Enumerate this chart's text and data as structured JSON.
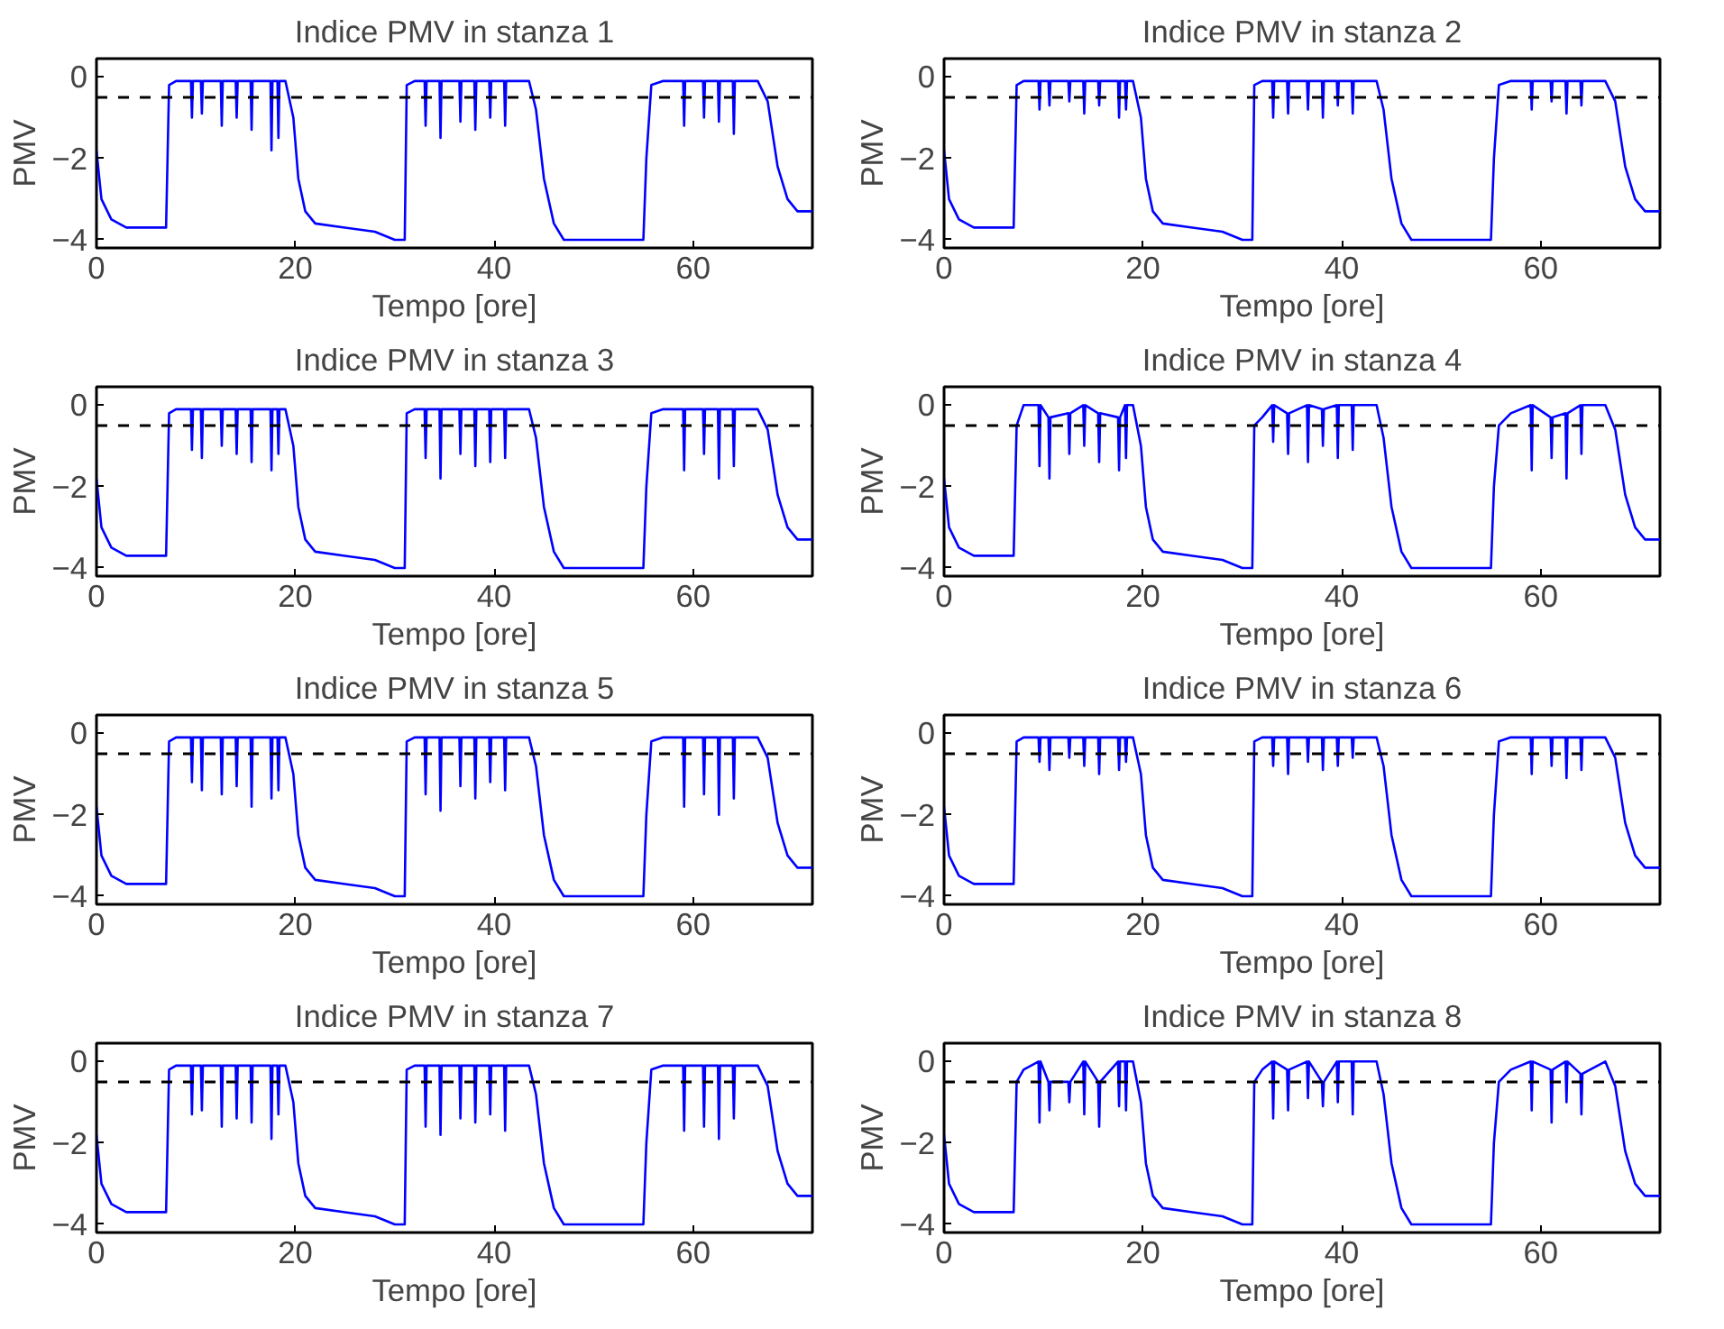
{
  "chart_data": [
    {
      "type": "line",
      "title": "Indice PMV in stanza 1",
      "xlabel": "Tempo [ore]",
      "ylabel": "PMV",
      "xlim": [
        0,
        72
      ],
      "ylim": [
        -4.2,
        0.45
      ],
      "xticks": [
        0,
        20,
        40,
        60
      ],
      "yticks": [
        0,
        -2,
        -4
      ],
      "ref_lines": [
        {
          "axis": "y",
          "value": -0.5,
          "color": "#000000",
          "line_style": "dashed"
        }
      ],
      "x": [
        0,
        0.5,
        1.5,
        3,
        7,
        7.3,
        8,
        9.5,
        9.6,
        9.7,
        10.5,
        10.6,
        10.7,
        12.5,
        12.6,
        12.7,
        14,
        14.1,
        14.2,
        15.5,
        15.6,
        15.7,
        17.5,
        17.6,
        17.7,
        18.2,
        18.3,
        18.4,
        19,
        19.8,
        20.3,
        21,
        22,
        25,
        28,
        30,
        31,
        31.2,
        32,
        33,
        33.1,
        33.2,
        34.5,
        34.6,
        34.7,
        36.5,
        36.6,
        36.7,
        38,
        38.1,
        38.2,
        39.5,
        39.6,
        39.7,
        41,
        41.1,
        41.2,
        43.5,
        44.2,
        45,
        46,
        47,
        55,
        55.3,
        55.8,
        57,
        59,
        59.1,
        59.2,
        61,
        61.1,
        61.2,
        62.5,
        62.6,
        62.7,
        64,
        64.1,
        64.2,
        66.5,
        67.5,
        68.5,
        69.5,
        70.5,
        72
      ],
      "series": [
        {
          "color": "#0000ff",
          "values": [
            -1.8,
            -3.0,
            -3.5,
            -3.7,
            -3.7,
            -0.2,
            -0.1,
            -0.1,
            -1.0,
            -0.1,
            -0.1,
            -0.9,
            -0.1,
            -0.1,
            -1.2,
            -0.1,
            -0.1,
            -1.0,
            -0.1,
            -0.1,
            -1.3,
            -0.1,
            -0.1,
            -1.8,
            -0.1,
            -0.1,
            -1.5,
            -0.1,
            -0.1,
            -1.0,
            -2.5,
            -3.3,
            -3.6,
            -3.7,
            -3.8,
            -4.0,
            -4.0,
            -0.2,
            -0.1,
            -0.1,
            -1.2,
            -0.1,
            -0.1,
            -1.5,
            -0.1,
            -0.1,
            -1.1,
            -0.1,
            -0.1,
            -1.3,
            -0.1,
            -0.1,
            -1.0,
            -0.1,
            -0.1,
            -1.2,
            -0.1,
            -0.1,
            -0.8,
            -2.5,
            -3.6,
            -4.0,
            -4.0,
            -2.0,
            -0.2,
            -0.1,
            -0.1,
            -1.2,
            -0.1,
            -0.1,
            -1.0,
            -0.1,
            -0.1,
            -1.1,
            -0.1,
            -0.1,
            -1.4,
            -0.1,
            -0.1,
            -0.6,
            -2.2,
            -3.0,
            -3.3,
            -3.3
          ]
        }
      ]
    },
    {
      "type": "line",
      "title": "Indice PMV in stanza 2",
      "xlabel": "Tempo [ore]",
      "ylabel": "PMV",
      "xlim": [
        0,
        72
      ],
      "ylim": [
        -4.2,
        0.45
      ],
      "xticks": [
        0,
        20,
        40,
        60
      ],
      "yticks": [
        0,
        -2,
        -4
      ],
      "ref_lines": [
        {
          "axis": "y",
          "value": -0.5,
          "color": "#000000",
          "line_style": "dashed"
        }
      ],
      "x": [
        0,
        0.5,
        1.5,
        3,
        7,
        7.3,
        8,
        9.5,
        9.6,
        9.7,
        10.5,
        10.6,
        10.7,
        12.5,
        12.6,
        12.7,
        14,
        14.1,
        14.2,
        15.5,
        15.6,
        15.7,
        17.5,
        17.6,
        17.7,
        18.2,
        18.3,
        18.4,
        19,
        19.8,
        20.3,
        21,
        22,
        25,
        28,
        30,
        31,
        31.2,
        32,
        33,
        33.1,
        33.2,
        34.5,
        34.6,
        34.7,
        36.5,
        36.6,
        36.7,
        38,
        38.1,
        38.2,
        39.5,
        39.6,
        39.7,
        41,
        41.1,
        41.2,
        43.5,
        44.2,
        45,
        46,
        47,
        55,
        55.3,
        55.8,
        57,
        59,
        59.1,
        59.2,
        61,
        61.1,
        61.2,
        62.5,
        62.6,
        62.7,
        64,
        64.1,
        64.2,
        66.5,
        67.5,
        68.5,
        69.5,
        70.5,
        72
      ],
      "series": [
        {
          "color": "#0000ff",
          "values": [
            -1.8,
            -3.0,
            -3.5,
            -3.7,
            -3.7,
            -0.2,
            -0.1,
            -0.1,
            -0.8,
            -0.1,
            -0.1,
            -0.7,
            -0.1,
            -0.1,
            -0.6,
            -0.1,
            -0.1,
            -0.9,
            -0.1,
            -0.1,
            -0.7,
            -0.1,
            -0.1,
            -1.0,
            -0.1,
            -0.1,
            -0.8,
            -0.1,
            -0.1,
            -1.0,
            -2.5,
            -3.3,
            -3.6,
            -3.7,
            -3.8,
            -4.0,
            -4.0,
            -0.2,
            -0.1,
            -0.1,
            -1.0,
            -0.1,
            -0.1,
            -0.9,
            -0.1,
            -0.1,
            -0.8,
            -0.1,
            -0.1,
            -1.0,
            -0.1,
            -0.1,
            -0.7,
            -0.1,
            -0.1,
            -0.9,
            -0.1,
            -0.1,
            -0.8,
            -2.5,
            -3.6,
            -4.0,
            -4.0,
            -2.0,
            -0.2,
            -0.1,
            -0.1,
            -0.8,
            -0.1,
            -0.1,
            -0.6,
            -0.1,
            -0.1,
            -0.9,
            -0.1,
            -0.1,
            -0.7,
            -0.1,
            -0.1,
            -0.6,
            -2.2,
            -3.0,
            -3.3,
            -3.3
          ]
        }
      ]
    },
    {
      "type": "line",
      "title": "Indice PMV in stanza 3",
      "xlabel": "Tempo [ore]",
      "ylabel": "PMV",
      "xlim": [
        0,
        72
      ],
      "ylim": [
        -4.2,
        0.45
      ],
      "xticks": [
        0,
        20,
        40,
        60
      ],
      "yticks": [
        0,
        -2,
        -4
      ],
      "ref_lines": [
        {
          "axis": "y",
          "value": -0.5,
          "color": "#000000",
          "line_style": "dashed"
        }
      ],
      "x": [
        0,
        0.5,
        1.5,
        3,
        7,
        7.3,
        8,
        9.5,
        9.6,
        9.7,
        10.5,
        10.6,
        10.7,
        12.5,
        12.6,
        12.7,
        14,
        14.1,
        14.2,
        15.5,
        15.6,
        15.7,
        17.5,
        17.6,
        17.7,
        18.2,
        18.3,
        18.4,
        19,
        19.8,
        20.3,
        21,
        22,
        25,
        28,
        30,
        31,
        31.2,
        32,
        33,
        33.1,
        33.2,
        34.5,
        34.6,
        34.7,
        36.5,
        36.6,
        36.7,
        38,
        38.1,
        38.2,
        39.5,
        39.6,
        39.7,
        41,
        41.1,
        41.2,
        43.5,
        44.2,
        45,
        46,
        47,
        55,
        55.3,
        55.8,
        57,
        59,
        59.1,
        59.2,
        61,
        61.1,
        61.2,
        62.5,
        62.6,
        62.7,
        64,
        64.1,
        64.2,
        66.5,
        67.5,
        68.5,
        69.5,
        70.5,
        72
      ],
      "series": [
        {
          "color": "#0000ff",
          "values": [
            -1.8,
            -3.0,
            -3.5,
            -3.7,
            -3.7,
            -0.2,
            -0.1,
            -0.1,
            -1.1,
            -0.1,
            -0.1,
            -1.3,
            -0.1,
            -0.1,
            -1.0,
            -0.1,
            -0.1,
            -1.2,
            -0.1,
            -0.1,
            -1.4,
            -0.1,
            -0.1,
            -1.6,
            -0.1,
            -0.1,
            -1.2,
            -0.1,
            -0.1,
            -1.0,
            -2.5,
            -3.3,
            -3.6,
            -3.7,
            -3.8,
            -4.0,
            -4.0,
            -0.2,
            -0.1,
            -0.1,
            -1.3,
            -0.1,
            -0.1,
            -1.8,
            -0.1,
            -0.1,
            -1.2,
            -0.1,
            -0.1,
            -1.5,
            -0.1,
            -0.1,
            -1.4,
            -0.1,
            -0.1,
            -1.3,
            -0.1,
            -0.1,
            -0.8,
            -2.5,
            -3.6,
            -4.0,
            -4.0,
            -2.0,
            -0.2,
            -0.1,
            -0.1,
            -1.6,
            -0.1,
            -0.1,
            -1.2,
            -0.1,
            -0.1,
            -1.8,
            -0.1,
            -0.1,
            -1.5,
            -0.1,
            -0.1,
            -0.6,
            -2.2,
            -3.0,
            -3.3,
            -3.3
          ]
        }
      ]
    },
    {
      "type": "line",
      "title": "Indice PMV in stanza 4",
      "xlabel": "Tempo [ore]",
      "ylabel": "PMV",
      "xlim": [
        0,
        72
      ],
      "ylim": [
        -4.2,
        0.45
      ],
      "xticks": [
        0,
        20,
        40,
        60
      ],
      "yticks": [
        0,
        -2,
        -4
      ],
      "ref_lines": [
        {
          "axis": "y",
          "value": -0.5,
          "color": "#000000",
          "line_style": "dashed"
        }
      ],
      "x": [
        0,
        0.5,
        1.5,
        3,
        7,
        7.3,
        8,
        9.5,
        9.6,
        9.7,
        10.5,
        10.6,
        10.7,
        12.5,
        12.6,
        12.7,
        14,
        14.1,
        14.2,
        15.5,
        15.6,
        15.7,
        17.5,
        17.6,
        17.7,
        18.2,
        18.3,
        18.4,
        19,
        19.8,
        20.3,
        21,
        22,
        25,
        28,
        30,
        31,
        31.2,
        32,
        33,
        33.1,
        33.2,
        34.5,
        34.6,
        34.7,
        36.5,
        36.6,
        36.7,
        38,
        38.1,
        38.2,
        39.5,
        39.6,
        39.7,
        41,
        41.1,
        41.2,
        43.5,
        44.2,
        45,
        46,
        47,
        55,
        55.3,
        55.8,
        57,
        59,
        59.1,
        59.2,
        61,
        61.1,
        61.2,
        62.5,
        62.6,
        62.7,
        64,
        64.1,
        64.2,
        66.5,
        67.5,
        68.5,
        69.5,
        70.5,
        72
      ],
      "series": [
        {
          "color": "#0000ff",
          "values": [
            -1.8,
            -3.0,
            -3.5,
            -3.7,
            -3.7,
            -0.5,
            0,
            0,
            -1.5,
            0,
            -0.3,
            -1.8,
            -0.3,
            -0.2,
            -1.2,
            -0.2,
            0,
            -1.0,
            0,
            -0.2,
            -1.4,
            -0.2,
            -0.3,
            -1.6,
            -0.3,
            0,
            -1.3,
            0,
            0,
            -1.0,
            -2.5,
            -3.3,
            -3.6,
            -3.7,
            -3.8,
            -4.0,
            -4.0,
            -0.5,
            -0.3,
            0,
            -0.9,
            0,
            -0.2,
            -1.2,
            -0.2,
            0,
            -1.4,
            0,
            -0.1,
            -1.0,
            -0.1,
            0,
            -1.3,
            0,
            0,
            -1.1,
            0,
            0,
            -0.8,
            -2.5,
            -3.6,
            -4.0,
            -4.0,
            -2.0,
            -0.5,
            -0.2,
            0,
            -1.6,
            0,
            -0.3,
            -1.3,
            -0.3,
            -0.2,
            -1.8,
            -0.2,
            0,
            -1.2,
            0,
            0,
            -0.6,
            -2.2,
            -3.0,
            -3.3,
            -3.3
          ]
        }
      ]
    },
    {
      "type": "line",
      "title": "Indice PMV in stanza 5",
      "xlabel": "Tempo [ore]",
      "ylabel": "PMV",
      "xlim": [
        0,
        72
      ],
      "ylim": [
        -4.2,
        0.45
      ],
      "xticks": [
        0,
        20,
        40,
        60
      ],
      "yticks": [
        0,
        -2,
        -4
      ],
      "ref_lines": [
        {
          "axis": "y",
          "value": -0.5,
          "color": "#000000",
          "line_style": "dashed"
        }
      ],
      "x": [
        0,
        0.5,
        1.5,
        3,
        7,
        7.3,
        8,
        9.5,
        9.6,
        9.7,
        10.5,
        10.6,
        10.7,
        12.5,
        12.6,
        12.7,
        14,
        14.1,
        14.2,
        15.5,
        15.6,
        15.7,
        17.5,
        17.6,
        17.7,
        18.2,
        18.3,
        18.4,
        19,
        19.8,
        20.3,
        21,
        22,
        25,
        28,
        30,
        31,
        31.2,
        32,
        33,
        33.1,
        33.2,
        34.5,
        34.6,
        34.7,
        36.5,
        36.6,
        36.7,
        38,
        38.1,
        38.2,
        39.5,
        39.6,
        39.7,
        41,
        41.1,
        41.2,
        43.5,
        44.2,
        45,
        46,
        47,
        55,
        55.3,
        55.8,
        57,
        59,
        59.1,
        59.2,
        61,
        61.1,
        61.2,
        62.5,
        62.6,
        62.7,
        64,
        64.1,
        64.2,
        66.5,
        67.5,
        68.5,
        69.5,
        70.5,
        72
      ],
      "series": [
        {
          "color": "#0000ff",
          "values": [
            -1.8,
            -3.0,
            -3.5,
            -3.7,
            -3.7,
            -0.2,
            -0.1,
            -0.1,
            -1.2,
            -0.1,
            -0.1,
            -1.4,
            -0.1,
            -0.1,
            -1.5,
            -0.1,
            -0.1,
            -1.3,
            -0.1,
            -0.1,
            -1.8,
            -0.1,
            -0.1,
            -1.6,
            -0.1,
            -0.1,
            -1.4,
            -0.1,
            -0.1,
            -1.0,
            -2.5,
            -3.3,
            -3.6,
            -3.7,
            -3.8,
            -4.0,
            -4.0,
            -0.2,
            -0.1,
            -0.1,
            -1.5,
            -0.1,
            -0.1,
            -1.9,
            -0.1,
            -0.1,
            -1.3,
            -0.1,
            -0.1,
            -1.6,
            -0.1,
            -0.1,
            -1.2,
            -0.1,
            -0.1,
            -1.4,
            -0.1,
            -0.1,
            -0.8,
            -2.5,
            -3.6,
            -4.0,
            -4.0,
            -2.0,
            -0.2,
            -0.1,
            -0.1,
            -1.8,
            -0.1,
            -0.1,
            -1.5,
            -0.1,
            -0.1,
            -2.0,
            -0.1,
            -0.1,
            -1.6,
            -0.1,
            -0.1,
            -0.6,
            -2.2,
            -3.0,
            -3.3,
            -3.3
          ]
        }
      ]
    },
    {
      "type": "line",
      "title": "Indice PMV in stanza 6",
      "xlabel": "Tempo [ore]",
      "ylabel": "PMV",
      "xlim": [
        0,
        72
      ],
      "ylim": [
        -4.2,
        0.45
      ],
      "xticks": [
        0,
        20,
        40,
        60
      ],
      "yticks": [
        0,
        -2,
        -4
      ],
      "ref_lines": [
        {
          "axis": "y",
          "value": -0.5,
          "color": "#000000",
          "line_style": "dashed"
        }
      ],
      "x": [
        0,
        0.5,
        1.5,
        3,
        7,
        7.3,
        8,
        9.5,
        9.6,
        9.7,
        10.5,
        10.6,
        10.7,
        12.5,
        12.6,
        12.7,
        14,
        14.1,
        14.2,
        15.5,
        15.6,
        15.7,
        17.5,
        17.6,
        17.7,
        18.2,
        18.3,
        18.4,
        19,
        19.8,
        20.3,
        21,
        22,
        25,
        28,
        30,
        31,
        31.2,
        32,
        33,
        33.1,
        33.2,
        34.5,
        34.6,
        34.7,
        36.5,
        36.6,
        36.7,
        38,
        38.1,
        38.2,
        39.5,
        39.6,
        39.7,
        41,
        41.1,
        41.2,
        43.5,
        44.2,
        45,
        46,
        47,
        55,
        55.3,
        55.8,
        57,
        59,
        59.1,
        59.2,
        61,
        61.1,
        61.2,
        62.5,
        62.6,
        62.7,
        64,
        64.1,
        64.2,
        66.5,
        67.5,
        68.5,
        69.5,
        70.5,
        72
      ],
      "series": [
        {
          "color": "#0000ff",
          "values": [
            -1.8,
            -3.0,
            -3.5,
            -3.7,
            -3.7,
            -0.2,
            -0.1,
            -0.1,
            -0.7,
            -0.1,
            -0.1,
            -0.9,
            -0.1,
            -0.1,
            -0.6,
            -0.1,
            -0.1,
            -0.8,
            -0.1,
            -0.1,
            -1.0,
            -0.1,
            -0.1,
            -0.9,
            -0.1,
            -0.1,
            -0.7,
            -0.1,
            -0.1,
            -1.0,
            -2.5,
            -3.3,
            -3.6,
            -3.7,
            -3.8,
            -4.0,
            -4.0,
            -0.2,
            -0.1,
            -0.1,
            -0.8,
            -0.1,
            -0.1,
            -1.0,
            -0.1,
            -0.1,
            -0.7,
            -0.1,
            -0.1,
            -0.9,
            -0.1,
            -0.1,
            -0.8,
            -0.1,
            -0.1,
            -0.6,
            -0.1,
            -0.1,
            -0.8,
            -2.5,
            -3.6,
            -4.0,
            -4.0,
            -2.0,
            -0.2,
            -0.1,
            -0.1,
            -1.0,
            -0.1,
            -0.1,
            -0.8,
            -0.1,
            -0.1,
            -1.1,
            -0.1,
            -0.1,
            -0.9,
            -0.1,
            -0.1,
            -0.6,
            -2.2,
            -3.0,
            -3.3,
            -3.3
          ]
        }
      ]
    },
    {
      "type": "line",
      "title": "Indice PMV in stanza 7",
      "xlabel": "Tempo [ore]",
      "ylabel": "PMV",
      "xlim": [
        0,
        72
      ],
      "ylim": [
        -4.2,
        0.45
      ],
      "xticks": [
        0,
        20,
        40,
        60
      ],
      "yticks": [
        0,
        -2,
        -4
      ],
      "ref_lines": [
        {
          "axis": "y",
          "value": -0.5,
          "color": "#000000",
          "line_style": "dashed"
        }
      ],
      "x": [
        0,
        0.5,
        1.5,
        3,
        7,
        7.3,
        8,
        9.5,
        9.6,
        9.7,
        10.5,
        10.6,
        10.7,
        12.5,
        12.6,
        12.7,
        14,
        14.1,
        14.2,
        15.5,
        15.6,
        15.7,
        17.5,
        17.6,
        17.7,
        18.2,
        18.3,
        18.4,
        19,
        19.8,
        20.3,
        21,
        22,
        25,
        28,
        30,
        31,
        31.2,
        32,
        33,
        33.1,
        33.2,
        34.5,
        34.6,
        34.7,
        36.5,
        36.6,
        36.7,
        38,
        38.1,
        38.2,
        39.5,
        39.6,
        39.7,
        41,
        41.1,
        41.2,
        43.5,
        44.2,
        45,
        46,
        47,
        55,
        55.3,
        55.8,
        57,
        59,
        59.1,
        59.2,
        61,
        61.1,
        61.2,
        62.5,
        62.6,
        62.7,
        64,
        64.1,
        64.2,
        66.5,
        67.5,
        68.5,
        69.5,
        70.5,
        72
      ],
      "series": [
        {
          "color": "#0000ff",
          "values": [
            -1.8,
            -3.0,
            -3.5,
            -3.7,
            -3.7,
            -0.2,
            -0.1,
            -0.1,
            -1.3,
            -0.1,
            -0.1,
            -1.2,
            -0.1,
            -0.1,
            -1.6,
            -0.1,
            -0.1,
            -1.4,
            -0.1,
            -0.1,
            -1.5,
            -0.1,
            -0.1,
            -1.9,
            -0.1,
            -0.1,
            -1.3,
            -0.1,
            -0.1,
            -1.0,
            -2.5,
            -3.3,
            -3.6,
            -3.7,
            -3.8,
            -4.0,
            -4.0,
            -0.2,
            -0.1,
            -0.1,
            -1.6,
            -0.1,
            -0.1,
            -1.8,
            -0.1,
            -0.1,
            -1.4,
            -0.1,
            -0.1,
            -1.5,
            -0.1,
            -0.1,
            -1.3,
            -0.1,
            -0.1,
            -1.7,
            -0.1,
            -0.1,
            -0.8,
            -2.5,
            -3.6,
            -4.0,
            -4.0,
            -2.0,
            -0.2,
            -0.1,
            -0.1,
            -1.7,
            -0.1,
            -0.1,
            -1.6,
            -0.1,
            -0.1,
            -1.9,
            -0.1,
            -0.1,
            -1.4,
            -0.1,
            -0.1,
            -0.6,
            -2.2,
            -3.0,
            -3.3,
            -3.3
          ]
        }
      ]
    },
    {
      "type": "line",
      "title": "Indice PMV in stanza 8",
      "xlabel": "Tempo [ore]",
      "ylabel": "PMV",
      "xlim": [
        0,
        72
      ],
      "ylim": [
        -4.2,
        0.45
      ],
      "xticks": [
        0,
        20,
        40,
        60
      ],
      "yticks": [
        0,
        -2,
        -4
      ],
      "ref_lines": [
        {
          "axis": "y",
          "value": -0.5,
          "color": "#000000",
          "line_style": "dashed"
        }
      ],
      "x": [
        0,
        0.5,
        1.5,
        3,
        7,
        7.3,
        8,
        9.5,
        9.6,
        9.7,
        10.5,
        10.6,
        10.7,
        12.5,
        12.6,
        12.7,
        14,
        14.1,
        14.2,
        15.5,
        15.6,
        15.7,
        17.5,
        17.6,
        17.7,
        18.2,
        18.3,
        18.4,
        19,
        19.8,
        20.3,
        21,
        22,
        25,
        28,
        30,
        31,
        31.2,
        32,
        33,
        33.1,
        33.2,
        34.5,
        34.6,
        34.7,
        36.5,
        36.6,
        36.7,
        38,
        38.1,
        38.2,
        39.5,
        39.6,
        39.7,
        41,
        41.1,
        41.2,
        43.5,
        44.2,
        45,
        46,
        47,
        55,
        55.3,
        55.8,
        57,
        59,
        59.1,
        59.2,
        61,
        61.1,
        61.2,
        62.5,
        62.6,
        62.7,
        64,
        64.1,
        64.2,
        66.5,
        67.5,
        68.5,
        69.5,
        70.5,
        72
      ],
      "series": [
        {
          "color": "#0000ff",
          "values": [
            -1.8,
            -3.0,
            -3.5,
            -3.7,
            -3.7,
            -0.5,
            -0.2,
            0,
            -1.5,
            0,
            -0.5,
            -1.2,
            -0.5,
            -0.5,
            -1.0,
            -0.5,
            0,
            -1.3,
            0,
            -0.5,
            -1.6,
            -0.5,
            0,
            -1.1,
            0,
            0,
            -1.2,
            0,
            0,
            -1.0,
            -2.5,
            -3.3,
            -3.6,
            -3.7,
            -3.8,
            -4.0,
            -4.0,
            -0.5,
            -0.2,
            0,
            -1.4,
            0,
            -0.2,
            -1.2,
            -0.2,
            0,
            -0.9,
            0,
            -0.5,
            -1.1,
            -0.5,
            0,
            -1.0,
            0,
            0,
            -1.3,
            0,
            0,
            -0.8,
            -2.5,
            -3.6,
            -4.0,
            -4.0,
            -2.0,
            -0.5,
            -0.2,
            0,
            -1.2,
            0,
            -0.2,
            -1.5,
            -0.2,
            0,
            -1.0,
            0,
            -0.3,
            -1.3,
            -0.3,
            0,
            -0.6,
            -2.2,
            -3.0,
            -3.3,
            -3.3
          ]
        }
      ]
    }
  ]
}
